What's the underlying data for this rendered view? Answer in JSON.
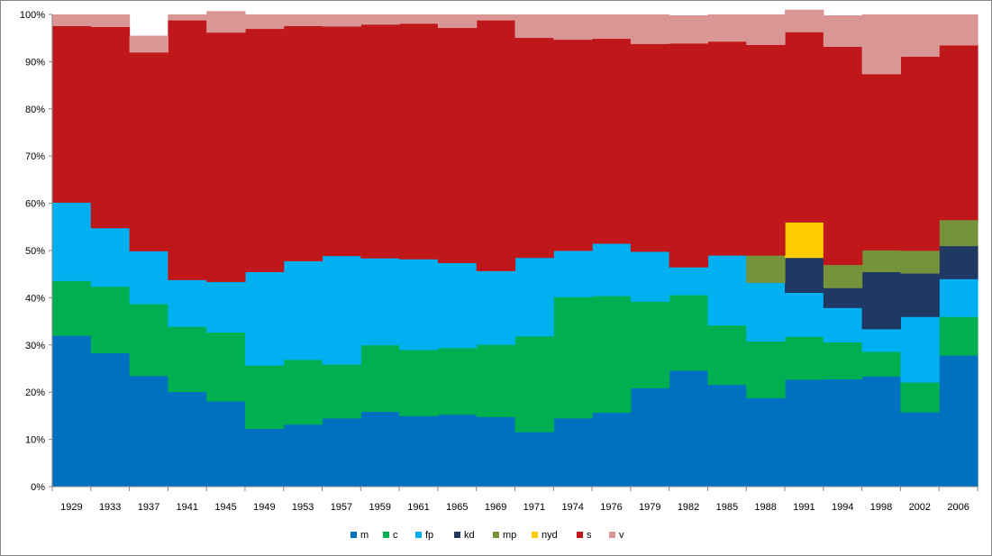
{
  "chart_data": {
    "type": "area",
    "stacked": "percent",
    "step": true,
    "categories": [
      "1929",
      "1933",
      "1937",
      "1941",
      "1945",
      "1949",
      "1953",
      "1957",
      "1959",
      "1961",
      "1965",
      "1969",
      "1971",
      "1974",
      "1976",
      "1979",
      "1982",
      "1985",
      "1988",
      "1991",
      "1994",
      "1998",
      "2002",
      "2006"
    ],
    "ylim": [
      0,
      100
    ],
    "yticks": [
      "0%",
      "10%",
      "20%",
      "30%",
      "40%",
      "50%",
      "60%",
      "70%",
      "80%",
      "90%",
      "100%"
    ],
    "grid": false,
    "legend_position": "bottom",
    "series": [
      {
        "name": "m",
        "color": "#0070C0",
        "values": [
          32.0,
          28.3,
          23.5,
          20.1,
          18.1,
          12.3,
          13.2,
          14.5,
          15.9,
          15.0,
          15.3,
          14.8,
          11.6,
          14.5,
          15.7,
          20.9,
          24.6,
          21.6,
          18.8,
          22.7,
          22.8,
          23.4,
          15.8,
          27.8
        ]
      },
      {
        "name": "c",
        "color": "#00B050",
        "values": [
          11.6,
          14.1,
          15.2,
          13.8,
          14.6,
          13.4,
          13.7,
          11.4,
          14.1,
          14.0,
          14.1,
          15.3,
          20.3,
          25.7,
          24.7,
          18.3,
          16.0,
          12.6,
          12.0,
          9.1,
          7.8,
          5.2,
          6.3,
          8.2
        ]
      },
      {
        "name": "fp",
        "color": "#00B0F0",
        "values": [
          16.6,
          12.4,
          11.2,
          9.9,
          10.7,
          19.8,
          20.9,
          23.0,
          18.4,
          19.2,
          18.0,
          15.6,
          16.6,
          9.8,
          11.1,
          10.6,
          5.9,
          14.8,
          12.4,
          9.3,
          7.3,
          4.8,
          13.9,
          8.0
        ]
      },
      {
        "name": "kd",
        "color": "#1F3864",
        "values": [
          0,
          0,
          0,
          0,
          0,
          0,
          0,
          0,
          0,
          0,
          0,
          0,
          0,
          0,
          0,
          0,
          0,
          0,
          0,
          7.4,
          4.2,
          12.1,
          9.2,
          7.0
        ]
      },
      {
        "name": "mp",
        "color": "#76933C",
        "values": [
          0,
          0,
          0,
          0,
          0,
          0,
          0,
          0,
          0,
          0,
          0,
          0,
          0,
          0,
          0,
          0,
          0,
          0,
          5.8,
          0,
          4.9,
          4.6,
          4.8,
          5.5
        ]
      },
      {
        "name": "nyd",
        "color": "#FFCC00",
        "values": [
          0,
          0,
          0,
          0,
          0,
          0,
          0,
          0,
          0,
          0,
          0,
          0,
          0,
          0,
          0,
          0,
          0,
          0,
          0,
          7.5,
          0,
          0,
          0,
          0
        ]
      },
      {
        "name": "s",
        "color": "#C0181A",
        "values": [
          37.4,
          42.6,
          42.1,
          55.0,
          52.8,
          51.5,
          49.8,
          48.6,
          49.5,
          49.9,
          49.8,
          53.1,
          46.6,
          44.7,
          43.4,
          44.0,
          47.4,
          45.3,
          44.6,
          40.3,
          46.2,
          37.3,
          41.1,
          37.0
        ]
      },
      {
        "name": "v",
        "color": "#D99694",
        "values": [
          2.4,
          2.6,
          3.5,
          1.2,
          4.5,
          3.0,
          2.4,
          2.5,
          2.1,
          1.9,
          2.8,
          1.2,
          4.9,
          5.3,
          5.1,
          6.2,
          5.9,
          5.7,
          6.4,
          4.7,
          6.6,
          12.6,
          8.9,
          6.5
        ]
      }
    ]
  }
}
